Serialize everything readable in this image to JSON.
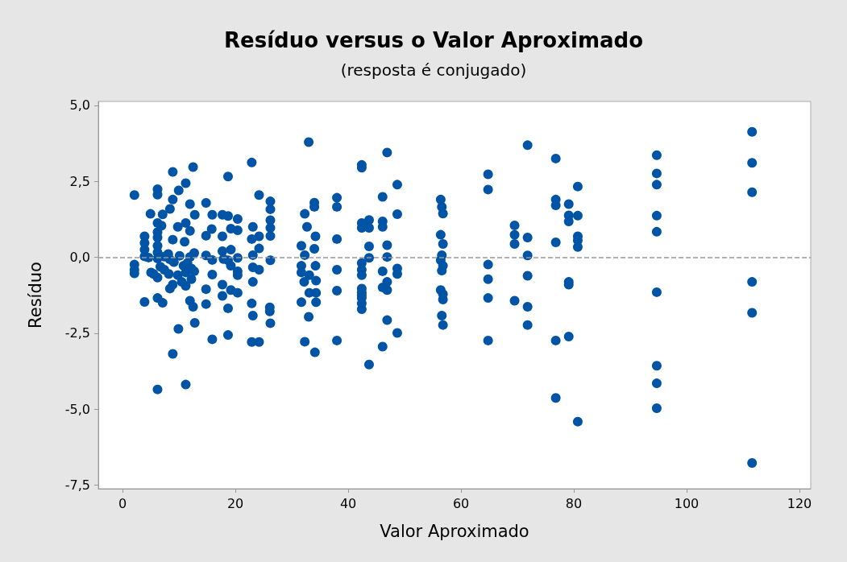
{
  "chart_data": {
    "type": "scatter",
    "title": "Resíduo versus o Valor Aproximado",
    "subtitle": "(resposta é conjugado)",
    "xlabel": "Valor Aproximado",
    "ylabel": "Resíduo",
    "xlim": [
      -4.3,
      122
    ],
    "xticks": [
      0,
      20,
      40,
      60,
      80,
      100,
      120
    ],
    "ylim": [
      -7.62,
      5.13
    ],
    "yticks": [
      {
        "value": 5,
        "label": "5,0"
      },
      {
        "value": 2.5,
        "label": "2,5"
      },
      {
        "value": 0,
        "label": "0,0"
      },
      {
        "value": -2.5,
        "label": "-2,5"
      },
      {
        "value": -5,
        "label": "-5,0"
      },
      {
        "value": -7.5,
        "label": "-7,5"
      }
    ],
    "grid": false,
    "marker": "circle",
    "ref_lines": [
      {
        "axis": "y",
        "value": 0,
        "color": "#999999",
        "line_style": "dashed"
      }
    ],
    "series": [
      {
        "color": "#0054a6",
        "x": [
          111.6,
          111.6,
          111.6,
          111.6,
          111.6,
          111.6,
          94.7,
          94.7,
          94.7,
          94.7,
          94.7,
          94.7,
          94.7,
          94.7,
          94.7,
          80.7,
          80.7,
          80.7,
          80.7,
          80.7,
          80.7,
          79.1,
          79.1,
          79.1,
          79.1,
          79.1,
          79.1,
          76.8,
          76.8,
          76.8,
          76.8,
          76.8,
          76.8,
          71.8,
          71.8,
          71.8,
          71.8,
          71.8,
          71.8,
          69.5,
          69.5,
          69.5,
          69.5,
          64.8,
          64.8,
          64.8,
          64.8,
          64.8,
          64.8,
          56.4,
          56.6,
          56.8,
          56.4,
          56.8,
          56.6,
          56.4,
          56.8,
          56.6,
          56.4,
          56.8,
          56.8,
          56.6,
          56.8,
          48.7,
          48.7,
          48.7,
          48.7,
          48.7,
          46.9,
          46.1,
          46.1,
          46.1,
          46.9,
          46.9,
          46.1,
          46.9,
          46.1,
          46.9,
          46.9,
          46.1,
          43.7,
          43.7,
          43.7,
          43.7,
          43.7,
          42.4,
          42.4,
          42.4,
          42.4,
          42.4,
          42.4,
          42.4,
          42.4,
          42.4,
          42.4,
          42.4,
          42.4,
          42.4,
          38.0,
          38.0,
          38.0,
          38.0,
          38.0,
          38.0,
          33.0,
          34.0,
          34.0,
          32.3,
          32.7,
          34.2,
          31.7,
          34.0,
          32.3,
          31.7,
          31.7,
          33.1,
          34.2,
          34.3,
          32.2,
          33.1,
          34.3,
          31.7,
          34.3,
          33.0,
          32.3,
          34.1,
          2.1,
          2.1,
          2.1,
          2.1,
          3.9,
          3.9,
          3.9,
          3.9,
          4.6,
          4.95,
          5.05,
          5.5,
          6.2,
          6.2,
          6.2,
          6.9,
          6.2,
          6.2,
          6.2,
          6.2,
          6.2,
          6.7,
          6.2,
          7.1,
          8.4,
          8.9,
          8.9,
          7.4,
          8.1,
          8.4,
          9.1,
          8.2,
          7.4,
          8.9,
          9.95,
          11.2,
          12.5,
          9.8,
          11.2,
          11.95,
          11.0,
          11.95,
          12.8,
          10.1,
          10.8,
          11.5,
          11.95,
          12.7,
          11.2,
          12.2,
          12.7,
          9.8,
          10.5,
          11.2,
          12.2,
          8.9,
          8.4,
          14.8,
          15.9,
          14.8,
          15.8,
          14.8,
          15.9,
          15.9,
          14.8,
          17.7,
          18.7,
          18.7,
          17.7,
          19.2,
          20.4,
          17.7,
          19.2,
          17.9,
          18.7,
          20.4,
          19.2,
          20.4,
          20.4,
          20.4,
          17.7,
          19.2,
          20.4,
          22.9,
          24.2,
          23.1,
          22.9,
          24.2,
          23.1,
          24.2,
          23.1,
          24.2,
          23.1,
          26.2,
          26.2,
          26.2,
          26.2,
          26.2,
          26.2,
          3.9,
          6.2,
          7.1,
          9.9,
          8.9,
          6.2,
          11.2,
          11.95,
          12.5,
          12.8,
          14.8,
          15.9,
          17.7,
          18.7,
          18.7,
          22.9,
          23.1,
          22.9,
          24.2,
          26.1,
          26.1,
          26.2
        ],
        "values": [
          4.13,
          3.11,
          2.14,
          -0.81,
          -1.83,
          -6.77,
          3.36,
          2.76,
          2.39,
          1.37,
          0.84,
          -1.15,
          -3.57,
          -4.15,
          -4.97,
          2.33,
          1.37,
          0.69,
          0.56,
          0.34,
          -5.41,
          1.75,
          1.38,
          1.18,
          -0.81,
          -0.9,
          -2.61,
          3.25,
          1.9,
          1.71,
          0.49,
          -2.74,
          -4.63,
          3.69,
          0.65,
          0.06,
          -0.61,
          -1.63,
          -2.23,
          1.05,
          0.74,
          0.44,
          -1.43,
          2.73,
          2.23,
          -0.24,
          -0.72,
          -1.34,
          -2.74,
          1.9,
          1.66,
          1.44,
          0.74,
          0.44,
          0.07,
          -0.1,
          -0.28,
          -0.44,
          -1.08,
          -1.21,
          -1.39,
          -1.92,
          -2.23,
          2.39,
          1.42,
          -0.37,
          -0.55,
          -2.49,
          3.45,
          1.99,
          1.18,
          1.0,
          0.4,
          0.01,
          -0.46,
          -0.81,
          -0.99,
          -1.08,
          -2.07,
          -2.94,
          1.23,
          0.97,
          0.36,
          -0.02,
          -3.53,
          3.04,
          2.95,
          1.13,
          0.97,
          -0.19,
          -0.41,
          -0.59,
          -1.03,
          -1.25,
          -1.34,
          -1.52,
          -1.71,
          -1.16,
          1.96,
          1.66,
          0.6,
          -0.41,
          -1.1,
          -2.74,
          3.79,
          1.8,
          1.66,
          1.43,
          1.0,
          0.69,
          0.38,
          0.28,
          0.07,
          -0.28,
          -0.5,
          -0.59,
          -0.28,
          -0.77,
          -0.81,
          -1.17,
          -1.17,
          -1.48,
          -1.48,
          -1.96,
          -2.78,
          -3.13,
          2.05,
          -0.24,
          -0.41,
          -0.53,
          0.69,
          0.47,
          0.25,
          0.03,
          -0.01,
          1.43,
          -0.5,
          -0.55,
          2.24,
          2.06,
          1.13,
          1.04,
          0.83,
          0.65,
          0.38,
          0.16,
          -0.04,
          -0.31,
          -0.67,
          1.41,
          1.59,
          1.9,
          2.81,
          0.02,
          0.11,
          -0.07,
          -0.16,
          -0.55,
          -0.41,
          0.58,
          2.2,
          2.44,
          2.97,
          1.0,
          1.13,
          0.87,
          0.51,
          1.75,
          1.4,
          0.05,
          -0.28,
          -0.19,
          0.01,
          0.14,
          -0.5,
          -0.37,
          -0.46,
          -0.59,
          -0.81,
          -0.94,
          -0.72,
          -0.9,
          -1.03,
          1.79,
          1.4,
          0.71,
          0.93,
          0.06,
          -0.09,
          -0.57,
          -1.05,
          1.4,
          1.36,
          2.66,
          0.69,
          0.94,
          0.89,
          0.2,
          0.25,
          -0.06,
          -0.1,
          -0.02,
          -0.28,
          1.26,
          -0.46,
          -0.59,
          -0.9,
          -1.08,
          -1.17,
          3.12,
          2.05,
          1.0,
          0.6,
          0.69,
          0.07,
          0.29,
          -0.33,
          -0.41,
          -0.81,
          1.84,
          1.58,
          1.22,
          0.97,
          0.7,
          -0.1,
          -1.47,
          -1.34,
          -1.5,
          -2.36,
          -3.18,
          -4.35,
          -4.19,
          -1.43,
          -1.63,
          -2.16,
          -1.54,
          -2.7,
          -1.27,
          -1.68,
          -2.56,
          -1.52,
          -1.92,
          -2.79,
          -2.79,
          -1.65,
          -1.78,
          -2.17
        ]
      }
    ]
  }
}
